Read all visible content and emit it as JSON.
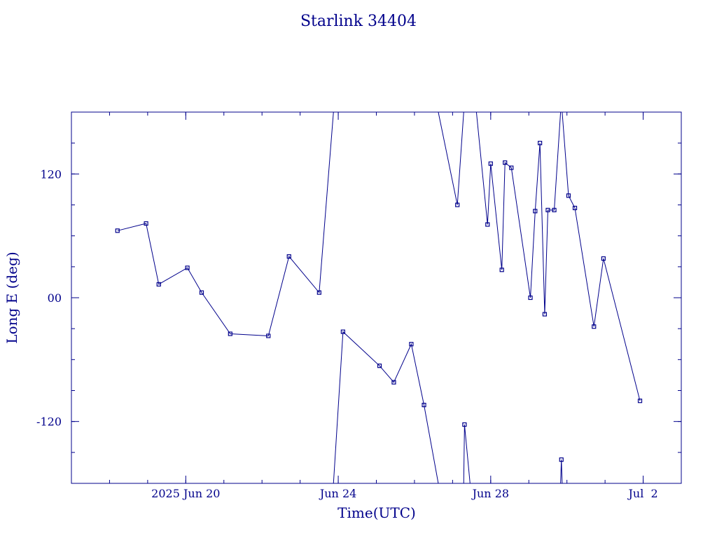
{
  "chart_data": {
    "type": "line",
    "title": "Starlink 34404",
    "xlabel": "Time(UTC)",
    "ylabel": "Long E (deg)",
    "x_unit": "date (UTC, 2025)",
    "xlim": [
      "2025-06-17T00:00",
      "2025-07-03T00:00"
    ],
    "ylim": [
      -180,
      180
    ],
    "x_ticks": [
      {
        "x": "2025-06-20T00:00",
        "label": "2025 Jun 20"
      },
      {
        "x": "2025-06-24T00:00",
        "label": "Jun 24"
      },
      {
        "x": "2025-06-28T00:00",
        "label": "Jun 28"
      },
      {
        "x": "2025-07-02T00:00",
        "label": "Jul  2"
      }
    ],
    "y_ticks": [
      {
        "y": 120,
        "label": "120"
      },
      {
        "y": 0,
        "label": "00"
      },
      {
        "y": -120,
        "label": "-120"
      }
    ],
    "grid": false,
    "legend": "none",
    "colors": {
      "line": "#00008b",
      "text": "#00008b",
      "axis": "#00008b"
    },
    "series": [
      {
        "points": [
          {
            "x": "2025-06-18T05:00",
            "y": 65
          },
          {
            "x": "2025-06-18T23:00",
            "y": 72
          },
          {
            "x": "2025-06-19T07:00",
            "y": 13
          },
          {
            "x": "2025-06-20T01:00",
            "y": 29
          },
          {
            "x": "2025-06-20T10:00",
            "y": 5
          },
          {
            "x": "2025-06-21T04:00",
            "y": -35
          },
          {
            "x": "2025-06-22T04:00",
            "y": -37
          },
          {
            "x": "2025-06-22T17:00",
            "y": 40
          },
          {
            "x": "2025-06-23T12:00",
            "y": 5
          },
          {
            "x": "2025-06-23T21:00",
            "y": 180
          },
          {
            "x": "2025-06-23T21:00",
            "y": -180
          },
          {
            "x": "2025-06-24T03:00",
            "y": -33
          },
          {
            "x": "2025-06-25T02:00",
            "y": -66
          },
          {
            "x": "2025-06-25T11:00",
            "y": -82
          },
          {
            "x": "2025-06-25T22:00",
            "y": -45
          },
          {
            "x": "2025-06-26T06:00",
            "y": -104
          },
          {
            "x": "2025-06-26T15:00",
            "y": -180
          },
          {
            "x": "2025-06-26T15:00",
            "y": 180
          },
          {
            "x": "2025-06-27T03:00",
            "y": 90
          },
          {
            "x": "2025-06-27T07:00",
            "y": 180
          },
          {
            "x": "2025-06-27T07:00",
            "y": -180
          },
          {
            "x": "2025-06-27T07:30",
            "y": -123
          },
          {
            "x": "2025-06-27T11:00",
            "y": -180
          },
          {
            "x": "2025-06-27T11:00",
            "y": 180
          },
          {
            "x": "2025-06-27T15:00",
            "y": 180
          },
          {
            "x": "2025-06-27T22:00",
            "y": 71
          },
          {
            "x": "2025-06-28T00:00",
            "y": 130
          },
          {
            "x": "2025-06-28T07:00",
            "y": 27
          },
          {
            "x": "2025-06-28T09:00",
            "y": 131
          },
          {
            "x": "2025-06-28T13:00",
            "y": 126
          },
          {
            "x": "2025-06-29T01:00",
            "y": 0
          },
          {
            "x": "2025-06-29T04:00",
            "y": 84
          },
          {
            "x": "2025-06-29T07:00",
            "y": 150
          },
          {
            "x": "2025-06-29T10:00",
            "y": -16
          },
          {
            "x": "2025-06-29T12:00",
            "y": 85
          },
          {
            "x": "2025-06-29T16:00",
            "y": 85
          },
          {
            "x": "2025-06-29T20:00",
            "y": 180
          },
          {
            "x": "2025-06-29T20:00",
            "y": -180
          },
          {
            "x": "2025-06-29T20:30",
            "y": -157
          },
          {
            "x": "2025-06-29T21:00",
            "y": -180
          },
          {
            "x": "2025-06-29T21:00",
            "y": 180
          },
          {
            "x": "2025-06-30T01:00",
            "y": 99
          },
          {
            "x": "2025-06-30T05:00",
            "y": 87
          },
          {
            "x": "2025-06-30T17:00",
            "y": -28
          },
          {
            "x": "2025-06-30T23:00",
            "y": 38
          },
          {
            "x": "2025-07-01T22:00",
            "y": -100
          }
        ]
      }
    ]
  }
}
